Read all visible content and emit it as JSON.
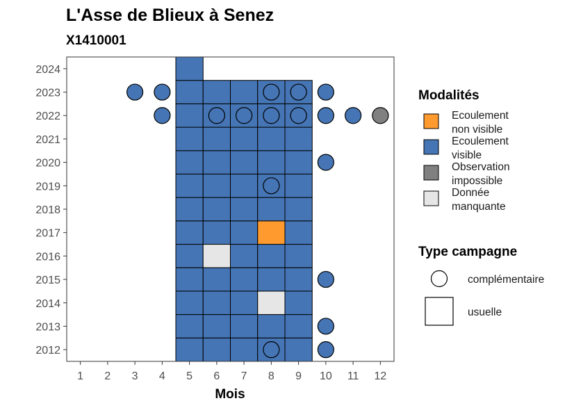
{
  "chart_data": {
    "type": "heatmap",
    "title": "L'Asse de Blieux à Senez",
    "subtitle": "X1410001",
    "xlabel": "Mois",
    "ylabel": "",
    "x_ticks": [
      "1",
      "2",
      "3",
      "4",
      "5",
      "6",
      "7",
      "8",
      "9",
      "10",
      "11",
      "12"
    ],
    "y_ticks": [
      "2012",
      "2013",
      "2014",
      "2015",
      "2016",
      "2017",
      "2018",
      "2019",
      "2020",
      "2021",
      "2022",
      "2023",
      "2024"
    ],
    "xlim": [
      0.5,
      12.5
    ],
    "ylim": [
      2011.5,
      2024.5
    ],
    "colors": {
      "Ecoulement non visible": "#ff9a2e",
      "Ecoulement visible": "#4575b4",
      "Observation impossible": "#808080",
      "Donnée manquante": "#e6e6e6"
    },
    "legend_fill": {
      "title": "Modalités",
      "placement": "right",
      "items": [
        {
          "key": "Ecoulement non visible",
          "line1": "Ecoulement",
          "line2": "non visible",
          "color": "#ff9a2e"
        },
        {
          "key": "Ecoulement visible",
          "line1": "Ecoulement",
          "line2": "visible",
          "color": "#4575b4"
        },
        {
          "key": "Observation impossible",
          "line1": "Observation",
          "line2": "impossible",
          "color": "#808080"
        },
        {
          "key": "Donnée manquante",
          "line1": "Donnée",
          "line2": "manquante",
          "color": "#e6e6e6"
        }
      ]
    },
    "legend_shape": {
      "title": "Type campagne",
      "items": [
        {
          "label": "complémentaire",
          "shape": "circle"
        },
        {
          "label": "usuelle",
          "shape": "square"
        }
      ]
    },
    "usuelle": [
      {
        "year": 2012,
        "months": [
          5,
          6,
          7,
          8,
          9
        ],
        "values": [
          "Ecoulement visible",
          "Ecoulement visible",
          "Ecoulement visible",
          "Ecoulement visible",
          "Ecoulement visible"
        ]
      },
      {
        "year": 2013,
        "months": [
          5,
          6,
          7,
          8,
          9
        ],
        "values": [
          "Ecoulement visible",
          "Ecoulement visible",
          "Ecoulement visible",
          "Ecoulement visible",
          "Ecoulement visible"
        ]
      },
      {
        "year": 2014,
        "months": [
          5,
          6,
          7,
          8,
          9
        ],
        "values": [
          "Ecoulement visible",
          "Ecoulement visible",
          "Ecoulement visible",
          "Donnée manquante",
          "Ecoulement visible"
        ]
      },
      {
        "year": 2015,
        "months": [
          5,
          6,
          7,
          8,
          9
        ],
        "values": [
          "Ecoulement visible",
          "Ecoulement visible",
          "Ecoulement visible",
          "Ecoulement visible",
          "Ecoulement visible"
        ]
      },
      {
        "year": 2016,
        "months": [
          5,
          6,
          7,
          8,
          9
        ],
        "values": [
          "Ecoulement visible",
          "Donnée manquante",
          "Ecoulement visible",
          "Ecoulement visible",
          "Ecoulement visible"
        ]
      },
      {
        "year": 2017,
        "months": [
          5,
          6,
          7,
          8,
          9
        ],
        "values": [
          "Ecoulement visible",
          "Ecoulement visible",
          "Ecoulement visible",
          "Ecoulement non visible",
          "Ecoulement visible"
        ]
      },
      {
        "year": 2018,
        "months": [
          5,
          6,
          7,
          8,
          9
        ],
        "values": [
          "Ecoulement visible",
          "Ecoulement visible",
          "Ecoulement visible",
          "Ecoulement visible",
          "Ecoulement visible"
        ]
      },
      {
        "year": 2019,
        "months": [
          5,
          6,
          7,
          8,
          9
        ],
        "values": [
          "Ecoulement visible",
          "Ecoulement visible",
          "Ecoulement visible",
          "Ecoulement visible",
          "Ecoulement visible"
        ]
      },
      {
        "year": 2020,
        "months": [
          5,
          6,
          7,
          8,
          9
        ],
        "values": [
          "Ecoulement visible",
          "Ecoulement visible",
          "Ecoulement visible",
          "Ecoulement visible",
          "Ecoulement visible"
        ]
      },
      {
        "year": 2021,
        "months": [
          5,
          6,
          7,
          8,
          9
        ],
        "values": [
          "Ecoulement visible",
          "Ecoulement visible",
          "Ecoulement visible",
          "Ecoulement visible",
          "Ecoulement visible"
        ]
      },
      {
        "year": 2022,
        "months": [
          5,
          6,
          7,
          8,
          9
        ],
        "values": [
          "Ecoulement visible",
          "Ecoulement visible",
          "Ecoulement visible",
          "Ecoulement visible",
          "Ecoulement visible"
        ]
      },
      {
        "year": 2023,
        "months": [
          5,
          6,
          7,
          8,
          9
        ],
        "values": [
          "Ecoulement visible",
          "Ecoulement visible",
          "Ecoulement visible",
          "Ecoulement visible",
          "Ecoulement visible"
        ]
      },
      {
        "year": 2024,
        "months": [
          5
        ],
        "values": [
          "Ecoulement visible"
        ]
      }
    ],
    "complementaire": [
      {
        "year": 2012,
        "months": [
          8,
          10
        ],
        "values": [
          "Ecoulement visible",
          "Ecoulement visible"
        ]
      },
      {
        "year": 2013,
        "months": [
          10
        ],
        "values": [
          "Ecoulement visible"
        ]
      },
      {
        "year": 2015,
        "months": [
          10
        ],
        "values": [
          "Ecoulement visible"
        ]
      },
      {
        "year": 2019,
        "months": [
          8
        ],
        "values": [
          "Ecoulement visible"
        ]
      },
      {
        "year": 2020,
        "months": [
          10
        ],
        "values": [
          "Ecoulement visible"
        ]
      },
      {
        "year": 2022,
        "months": [
          4,
          6,
          7,
          8,
          9,
          10,
          11,
          12
        ],
        "values": [
          "Ecoulement visible",
          "Ecoulement visible",
          "Ecoulement visible",
          "Ecoulement visible",
          "Ecoulement visible",
          "Ecoulement visible",
          "Ecoulement visible",
          "Observation impossible"
        ]
      },
      {
        "year": 2023,
        "months": [
          3,
          4,
          8,
          9,
          10
        ],
        "values": [
          "Ecoulement visible",
          "Ecoulement visible",
          "Ecoulement visible",
          "Ecoulement visible",
          "Ecoulement visible"
        ]
      }
    ]
  }
}
